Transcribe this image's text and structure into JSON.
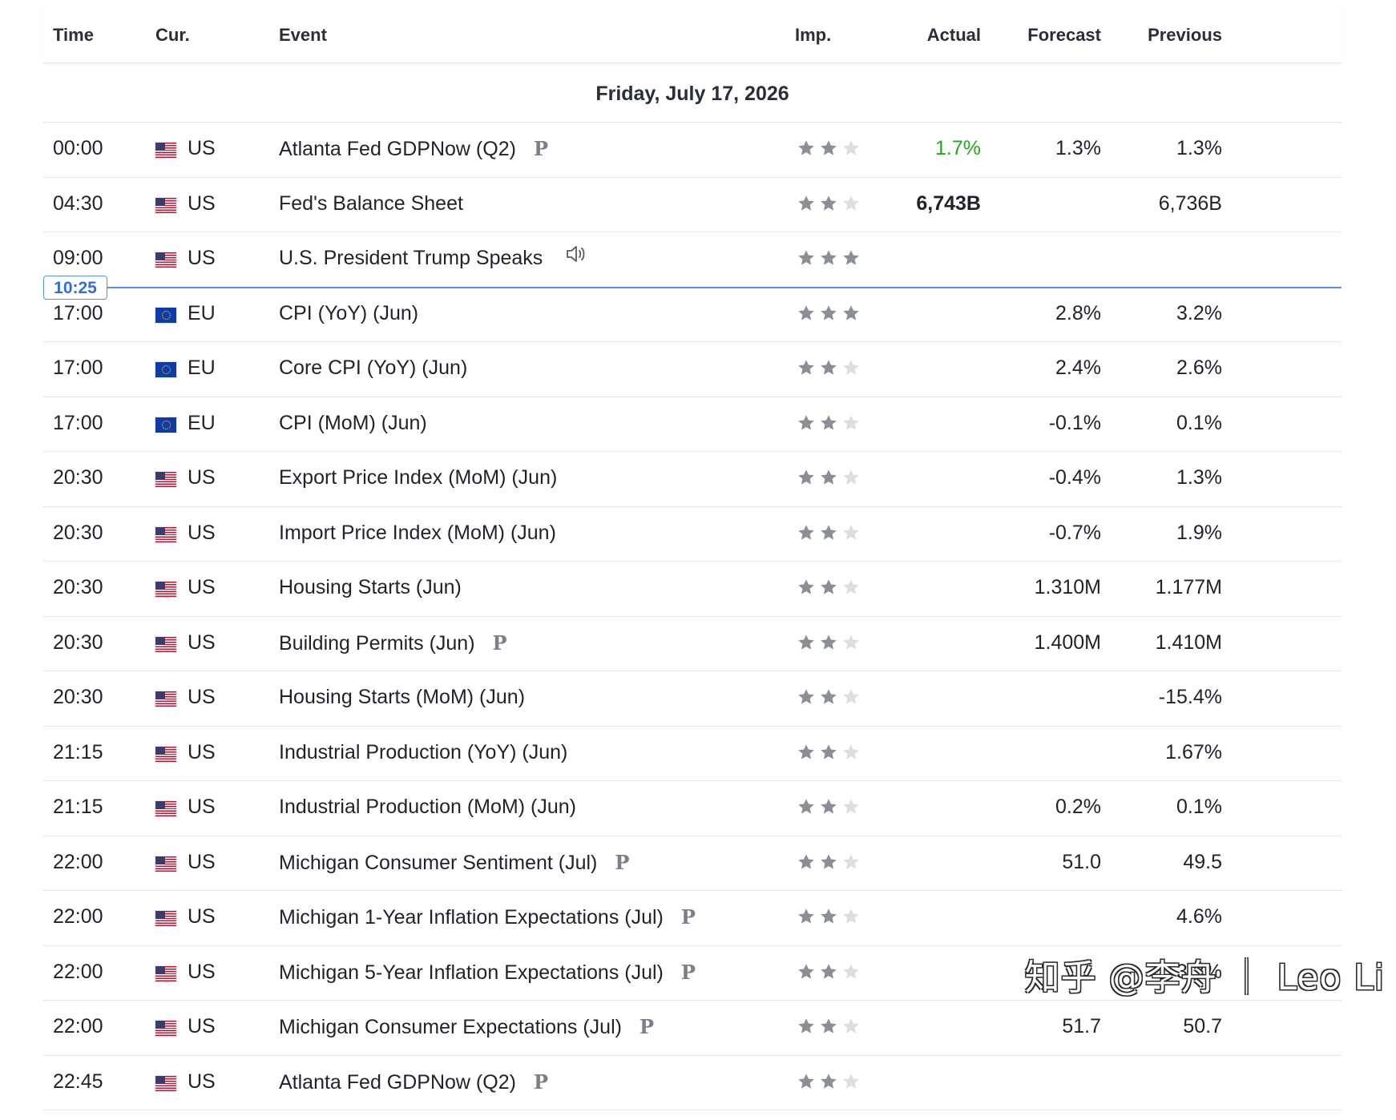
{
  "header": {
    "time": "Time",
    "currency": "Cur.",
    "event": "Event",
    "importance": "Imp.",
    "actual": "Actual",
    "forecast": "Forecast",
    "previous": "Previous"
  },
  "date_label": "Friday, July 17, 2026",
  "current_time": "10:25",
  "colors": {
    "accent": "#5b8fe0",
    "positive": "#26a61a",
    "star_on": "#8a8e96",
    "star_off": "#dcdee2"
  },
  "rows": [
    {
      "time": "00:00",
      "flag": "us-flag-icon",
      "cur": "US",
      "event": "Atlanta Fed GDPNow  (Q2)",
      "tag": "P",
      "stars": 2,
      "actual": "1.7%",
      "actual_style": "green",
      "forecast": "1.3%",
      "previous": "1.3%"
    },
    {
      "time": "04:30",
      "flag": "us-flag-icon",
      "cur": "US",
      "event": "Fed's Balance Sheet",
      "tag": "",
      "stars": 2,
      "actual": "6,743B",
      "actual_style": "bold",
      "forecast": "",
      "previous": "6,736B"
    },
    {
      "time": "09:00",
      "flag": "us-flag-icon",
      "cur": "US",
      "event": "U.S. President Trump Speaks",
      "tag": "",
      "speaker": true,
      "stars": 3,
      "actual": "",
      "actual_style": "",
      "forecast": "",
      "previous": ""
    },
    {
      "time": "17:00",
      "flag": "eu-flag-icon",
      "cur": "EU",
      "event": "CPI (YoY) (Jun)",
      "tag": "",
      "stars": 3,
      "actual": "",
      "actual_style": "",
      "forecast": "2.8%",
      "previous": "3.2%"
    },
    {
      "time": "17:00",
      "flag": "eu-flag-icon",
      "cur": "EU",
      "event": "Core CPI (YoY) (Jun)",
      "tag": "",
      "stars": 2,
      "actual": "",
      "actual_style": "",
      "forecast": "2.4%",
      "previous": "2.6%"
    },
    {
      "time": "17:00",
      "flag": "eu-flag-icon",
      "cur": "EU",
      "event": "CPI (MoM) (Jun)",
      "tag": "",
      "stars": 2,
      "actual": "",
      "actual_style": "",
      "forecast": "-0.1%",
      "previous": "0.1%"
    },
    {
      "time": "20:30",
      "flag": "us-flag-icon",
      "cur": "US",
      "event": "Export Price Index (MoM) (Jun)",
      "tag": "",
      "stars": 2,
      "actual": "",
      "actual_style": "",
      "forecast": "-0.4%",
      "previous": "1.3%"
    },
    {
      "time": "20:30",
      "flag": "us-flag-icon",
      "cur": "US",
      "event": "Import Price Index (MoM) (Jun)",
      "tag": "",
      "stars": 2,
      "actual": "",
      "actual_style": "",
      "forecast": "-0.7%",
      "previous": "1.9%"
    },
    {
      "time": "20:30",
      "flag": "us-flag-icon",
      "cur": "US",
      "event": "Housing Starts  (Jun)",
      "tag": "",
      "stars": 2,
      "actual": "",
      "actual_style": "",
      "forecast": "1.310M",
      "previous": "1.177M"
    },
    {
      "time": "20:30",
      "flag": "us-flag-icon",
      "cur": "US",
      "event": "Building Permits  (Jun)",
      "tag": "P",
      "stars": 2,
      "actual": "",
      "actual_style": "",
      "forecast": "1.400M",
      "previous": "1.410M"
    },
    {
      "time": "20:30",
      "flag": "us-flag-icon",
      "cur": "US",
      "event": "Housing Starts (MoM) (Jun)",
      "tag": "",
      "stars": 2,
      "actual": "",
      "actual_style": "",
      "forecast": "",
      "previous": "-15.4%"
    },
    {
      "time": "21:15",
      "flag": "us-flag-icon",
      "cur": "US",
      "event": "Industrial Production (YoY) (Jun)",
      "tag": "",
      "stars": 2,
      "actual": "",
      "actual_style": "",
      "forecast": "",
      "previous": "1.67%"
    },
    {
      "time": "21:15",
      "flag": "us-flag-icon",
      "cur": "US",
      "event": "Industrial Production (MoM) (Jun)",
      "tag": "",
      "stars": 2,
      "actual": "",
      "actual_style": "",
      "forecast": "0.2%",
      "previous": "0.1%"
    },
    {
      "time": "22:00",
      "flag": "us-flag-icon",
      "cur": "US",
      "event": "Michigan Consumer Sentiment  (Jul)",
      "tag": "P",
      "stars": 2,
      "actual": "",
      "actual_style": "",
      "forecast": "51.0",
      "previous": "49.5"
    },
    {
      "time": "22:00",
      "flag": "us-flag-icon",
      "cur": "US",
      "event": "Michigan 1-Year Inflation Expectations  (Jul)",
      "tag": "P",
      "stars": 2,
      "actual": "",
      "actual_style": "",
      "forecast": "",
      "previous": "4.6%"
    },
    {
      "time": "22:00",
      "flag": "us-flag-icon",
      "cur": "US",
      "event": "Michigan 5-Year Inflation Expectations  (Jul)",
      "tag": "P",
      "stars": 2,
      "actual": "",
      "actual_style": "",
      "forecast": "",
      "previous": "3.3%"
    },
    {
      "time": "22:00",
      "flag": "us-flag-icon",
      "cur": "US",
      "event": "Michigan Consumer Expectations  (Jul)",
      "tag": "P",
      "stars": 2,
      "actual": "",
      "actual_style": "",
      "forecast": "51.7",
      "previous": "50.7"
    },
    {
      "time": "22:45",
      "flag": "us-flag-icon",
      "cur": "US",
      "event": "Atlanta Fed GDPNow  (Q2)",
      "tag": "P",
      "stars": 2,
      "actual": "",
      "actual_style": "",
      "forecast": "",
      "previous": ""
    }
  ],
  "watermark": "知乎 @李舟 ｜ Leo Li"
}
